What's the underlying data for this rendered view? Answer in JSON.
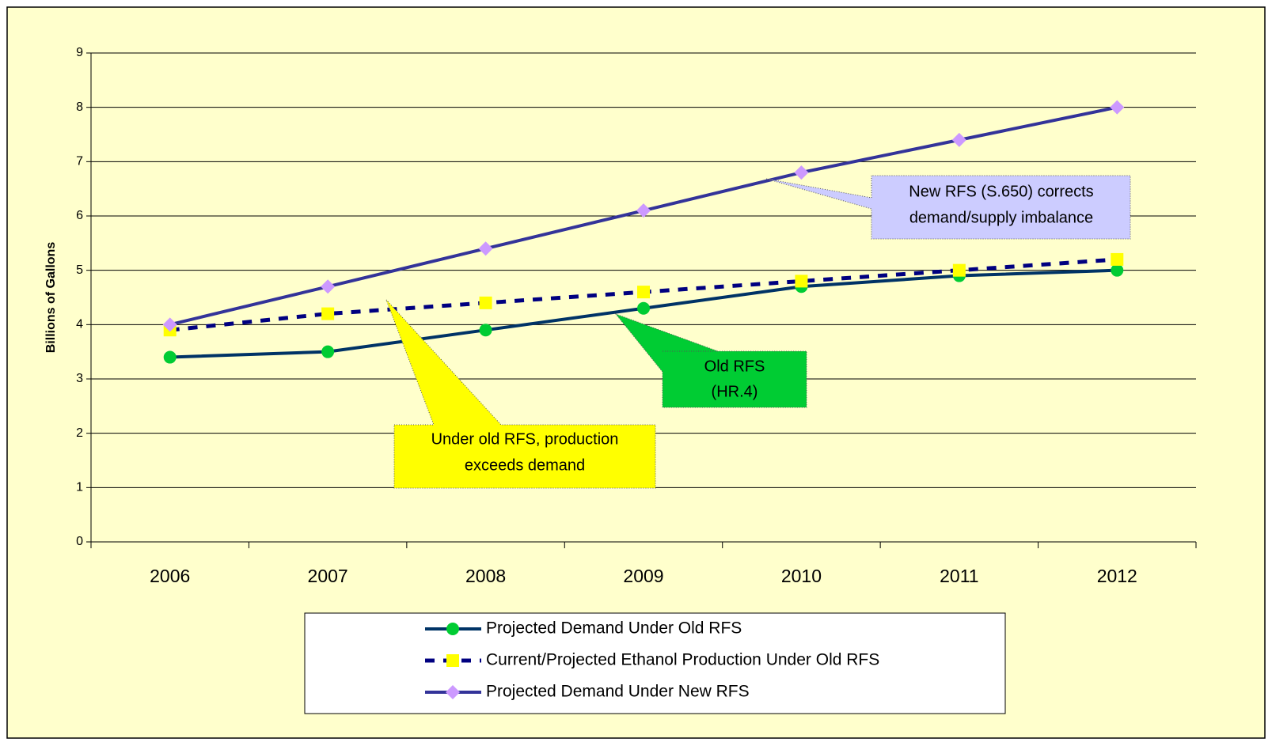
{
  "chart_data": {
    "type": "line",
    "y_label": "Billions of Gallons",
    "categories": [
      "2006",
      "2007",
      "2008",
      "2009",
      "2010",
      "2011",
      "2012"
    ],
    "series": [
      {
        "name": "Projected Demand Under Old RFS",
        "color": "#003366",
        "marker": "circle",
        "marker_color": "#00cc33",
        "dashed": false,
        "values": [
          3.4,
          3.5,
          3.9,
          4.3,
          4.7,
          4.9,
          5.0
        ]
      },
      {
        "name": "Current/Projected Ethanol Production Under Old RFS",
        "color": "#000080",
        "marker": "square",
        "marker_color": "#ffff00",
        "dashed": true,
        "values": [
          3.9,
          4.2,
          4.4,
          4.6,
          4.8,
          5.0,
          5.2
        ]
      },
      {
        "name": "Projected Demand Under New RFS",
        "color": "#333399",
        "marker": "diamond",
        "marker_color": "#cc99ff",
        "dashed": false,
        "values": [
          4.0,
          4.7,
          5.4,
          6.1,
          6.8,
          7.4,
          8.0
        ]
      }
    ],
    "ylim": [
      0,
      9
    ],
    "yticks": [
      0,
      1,
      2,
      3,
      4,
      5,
      6,
      7,
      8,
      9
    ],
    "grid": true,
    "legend": "bottom",
    "annotations": [
      [
        "New RFS (S.650) corrects",
        "demand/supply imbalance"
      ],
      [
        "Old RFS",
        "(HR.4)"
      ],
      [
        "Under old RFS, production",
        "exceeds demand"
      ]
    ]
  }
}
